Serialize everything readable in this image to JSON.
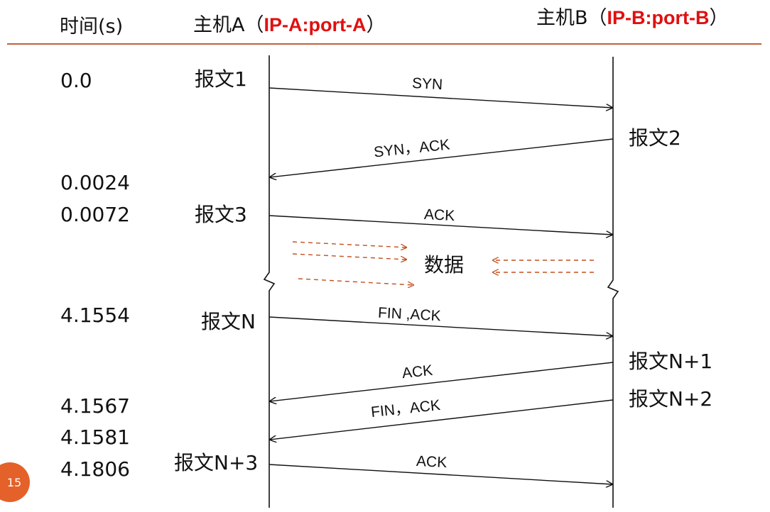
{
  "header": {
    "time_col": "时间(s)",
    "host_a_prefix": "主机A（",
    "host_a_addr": "IP-A:port-A",
    "host_a_suffix": "）",
    "host_b_prefix": "主机B（",
    "host_b_addr": "IP-B:port-B",
    "host_b_suffix": "）"
  },
  "colors": {
    "rule": "#c0613a",
    "red_text": "#e01010",
    "data_arrow": "#c0501f",
    "badge": "#e4612a"
  },
  "times": [
    "0.0",
    "0.0024",
    "0.0072",
    "4.1554",
    "4.1567",
    "4.1581",
    "4.1806"
  ],
  "messages_a": [
    "报文1",
    "报文3",
    "报文N",
    "报文N+3"
  ],
  "messages_b": [
    "报文2",
    "报文N+1",
    "报文N+2"
  ],
  "arrows": [
    {
      "label": "SYN",
      "dir": "A-to-B"
    },
    {
      "label": "SYN，ACK",
      "dir": "B-to-A"
    },
    {
      "label": "ACK",
      "dir": "A-to-B"
    },
    {
      "label": "FIN ,ACK",
      "dir": "A-to-B"
    },
    {
      "label": "ACK",
      "dir": "B-to-A"
    },
    {
      "label": "FIN，ACK",
      "dir": "B-to-A"
    },
    {
      "label": "ACK",
      "dir": "A-to-B"
    }
  ],
  "data_label": "数据",
  "page_number": "15"
}
